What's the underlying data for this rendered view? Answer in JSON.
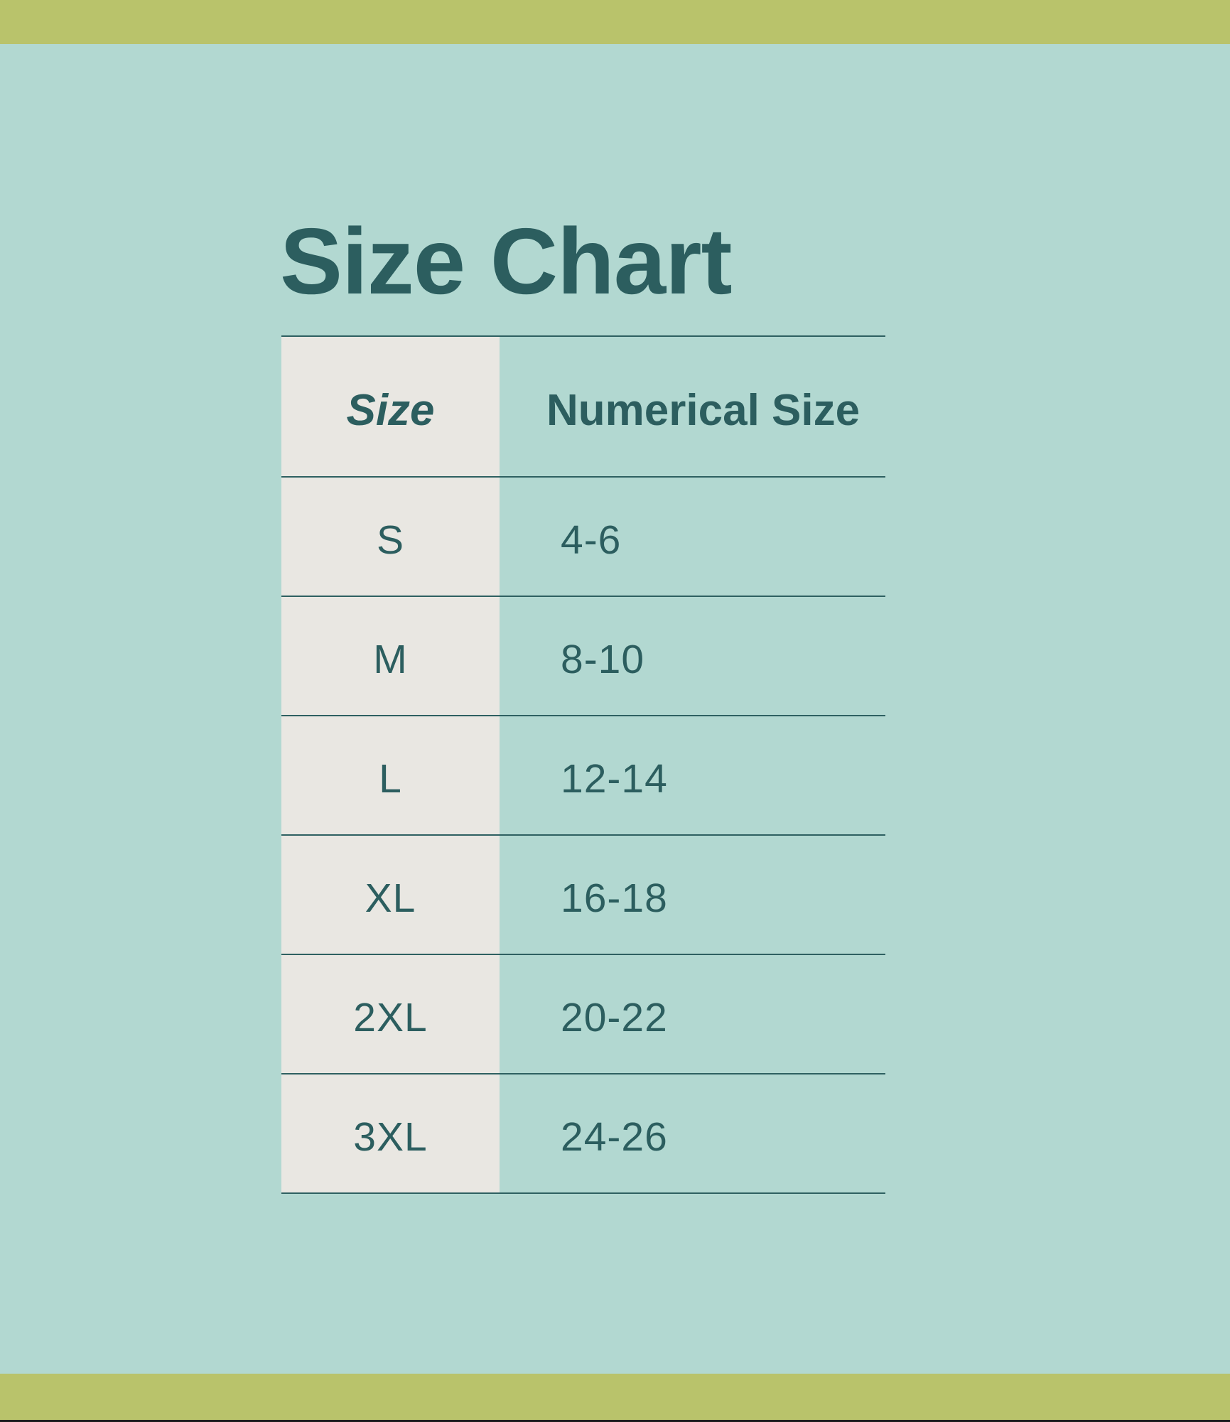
{
  "title": "Size Chart",
  "colors": {
    "band": "#b9c36b",
    "bg": "#b2d8d1",
    "cell": "#e9e7e2",
    "ink": "#2c5e5f",
    "line": "#2e6061"
  },
  "table": {
    "columns": [
      {
        "label": "Size"
      },
      {
        "label": "Numerical Size"
      }
    ],
    "rows": [
      {
        "size": "S",
        "numerical": "4-6"
      },
      {
        "size": "M",
        "numerical": "8-10"
      },
      {
        "size": "L",
        "numerical": "12-14"
      },
      {
        "size": "XL",
        "numerical": "16-18"
      },
      {
        "size": "2XL",
        "numerical": "20-22"
      },
      {
        "size": "3XL",
        "numerical": "24-26"
      }
    ]
  },
  "chart_data": {
    "type": "table",
    "title": "Size Chart",
    "columns": [
      "Size",
      "Numerical Size"
    ],
    "rows": [
      [
        "S",
        "4-6"
      ],
      [
        "M",
        "8-10"
      ],
      [
        "L",
        "12-14"
      ],
      [
        "XL",
        "16-18"
      ],
      [
        "2XL",
        "20-22"
      ],
      [
        "3XL",
        "24-26"
      ]
    ]
  }
}
